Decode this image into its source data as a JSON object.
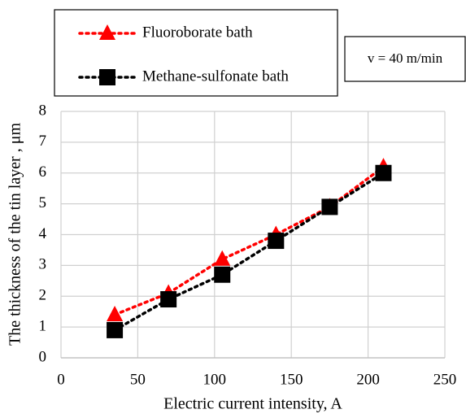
{
  "chart_data": {
    "type": "line",
    "x_label": "Electric current intensity, A",
    "y_label": "The thickness of the tin layer , μm",
    "annotation": "v = 40 m/min",
    "series": [
      {
        "name": "Fluoroborate bath",
        "color": "#ff0000",
        "marker": "triangle",
        "x": [
          35,
          70,
          105,
          140,
          175,
          210
        ],
        "values": [
          1.4,
          2.1,
          3.2,
          4.0,
          4.9,
          6.2
        ]
      },
      {
        "name": "Methane-sulfonate bath",
        "color": "#000000",
        "marker": "square",
        "x": [
          35,
          70,
          105,
          140,
          175,
          210
        ],
        "values": [
          0.9,
          1.9,
          2.7,
          3.8,
          4.9,
          6.0
        ]
      }
    ],
    "xlim": [
      0,
      250
    ],
    "xticks": [
      0,
      50,
      100,
      150,
      200,
      250
    ],
    "ylim": [
      0,
      8
    ],
    "yticks": [
      0,
      1,
      2,
      3,
      4,
      5,
      6,
      7,
      8
    ],
    "grid": true
  }
}
